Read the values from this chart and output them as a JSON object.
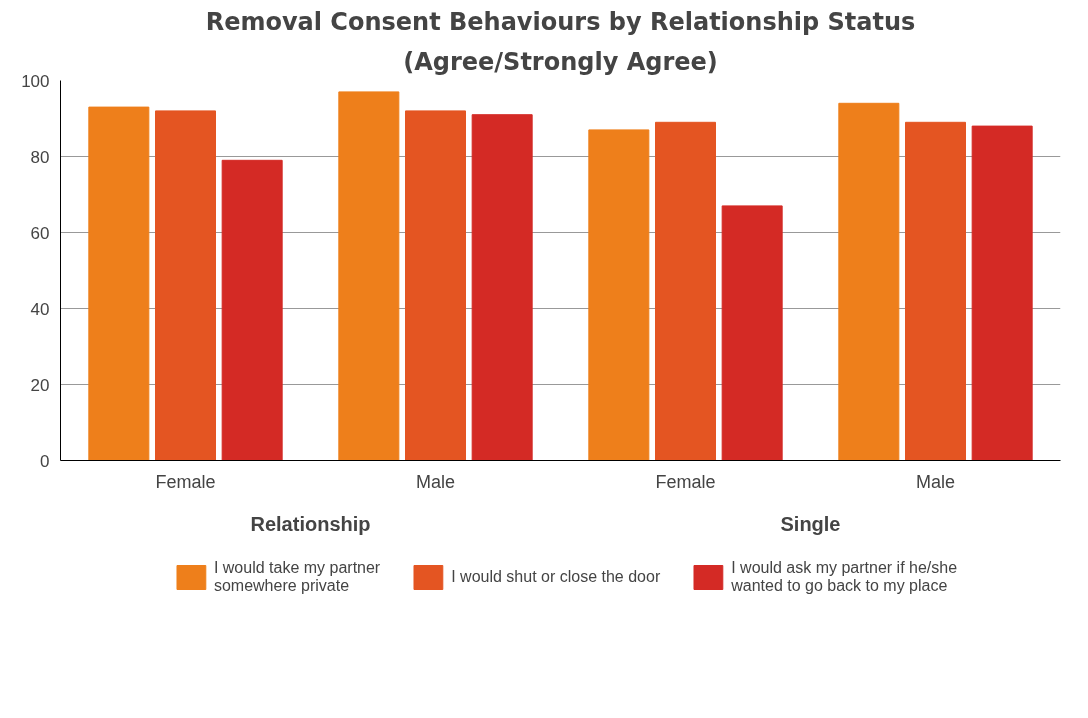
{
  "chart_data": {
    "type": "bar",
    "title": "Removal Consent Behaviours by Relationship Status",
    "subtitle": "(Agree/Strongly Agree)",
    "categories": [
      "Female",
      "Male",
      "Female",
      "Male"
    ],
    "annotations": [
      "Relationship",
      "Single"
    ],
    "series": [
      {
        "name": "I would take my partner somewhere private",
        "color": "#ee7f1b",
        "values": [
          93,
          97,
          87,
          94
        ]
      },
      {
        "name": "I would shut or close the door",
        "color": "#e45522",
        "values": [
          92,
          92,
          89,
          89
        ]
      },
      {
        "name": "I would ask my partner if he/she wanted to go back to my place",
        "color": "#d42a25",
        "values": [
          79,
          91,
          67,
          88
        ]
      }
    ],
    "ylim": [
      0,
      100
    ],
    "yticks": [
      0,
      20,
      40,
      60,
      80,
      100
    ],
    "grid": "y",
    "legend": "bottom"
  }
}
